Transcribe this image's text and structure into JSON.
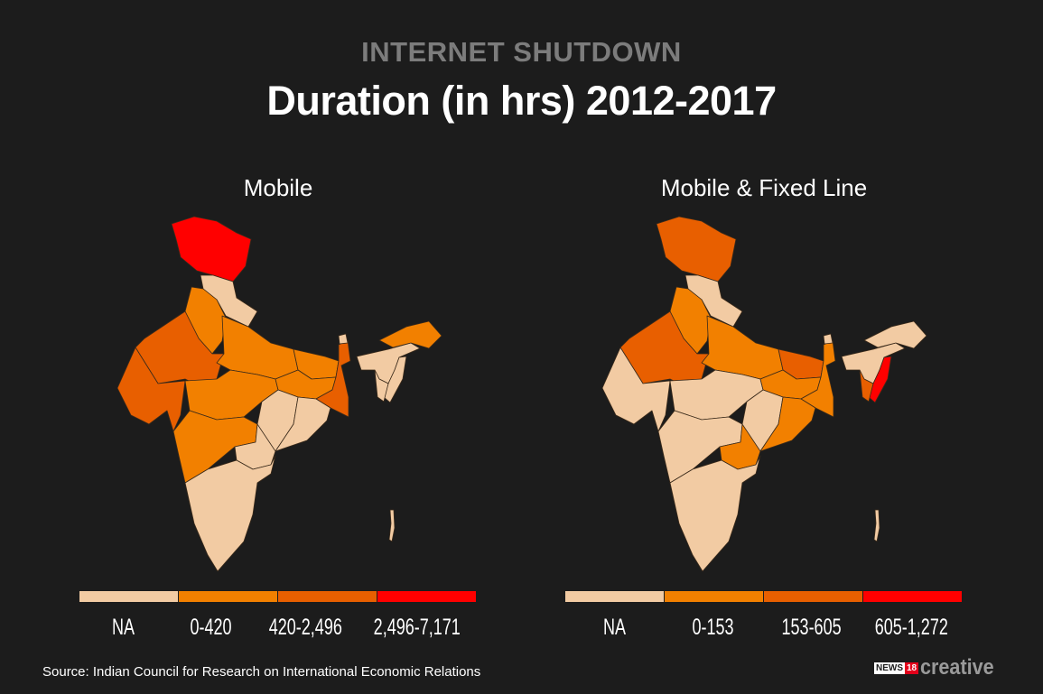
{
  "header": {
    "kicker": "INTERNET SHUTDOWN",
    "title": "Duration (in hrs) 2012-2017"
  },
  "colors": {
    "background": "#1c1c1c",
    "na": "#f2cba3",
    "low": "#f28000",
    "mid": "#e85f00",
    "high": "#ff0000",
    "border": "#3a2a1a"
  },
  "maps": [
    {
      "title": "Mobile",
      "legend": [
        "NA",
        "0-420",
        "420-2,496",
        "2,496-7,171"
      ],
      "regions": {
        "jk": 3,
        "hp": 0,
        "pb": 1,
        "rj": 2,
        "gj": 2,
        "up": 1,
        "mp": 1,
        "mh": 1,
        "bh": 1,
        "jh": 1,
        "wb": 2,
        "cg": 0,
        "od": 0,
        "tg": 0,
        "south": 0,
        "sk": 0,
        "ne": 0,
        "mn": 0,
        "tr": 0,
        "ar": 1,
        "an": 0
      }
    },
    {
      "title": "Mobile & Fixed Line",
      "legend": [
        "NA",
        "0-153",
        "153-605",
        "605-1,272"
      ],
      "regions": {
        "jk": 2,
        "hp": 0,
        "pb": 1,
        "rj": 2,
        "gj": 0,
        "up": 1,
        "mp": 0,
        "mh": 0,
        "bh": 2,
        "jh": 1,
        "wb": 1,
        "cg": 0,
        "od": 1,
        "tg": 1,
        "south": 0,
        "sk": 0,
        "ne": 0,
        "mn": 3,
        "tr": 2,
        "ar": 0,
        "an": 0
      }
    }
  ],
  "footer": {
    "source": "Source: Indian Council for Research on International Economic Relations",
    "logo_news": "NEWS",
    "logo_18": "18",
    "logo_creative": "creative"
  }
}
